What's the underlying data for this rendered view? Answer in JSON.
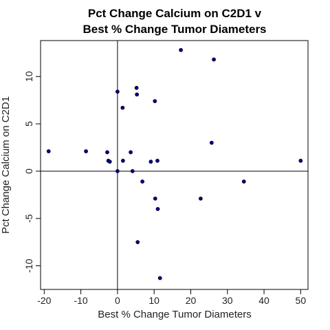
{
  "chart_data": {
    "type": "scatter",
    "title_lines": [
      "Pct Change Calcium on C2D1 v",
      "Best % Change Tumor Diameters"
    ],
    "xlabel": "Best % Change Tumor Diameters",
    "ylabel": "Pct Change Calcium on C2D1",
    "xlim": [
      -21,
      52
    ],
    "ylim": [
      -12.5,
      13.8
    ],
    "x_ticks": [
      -20,
      -10,
      0,
      10,
      20,
      30,
      40,
      50
    ],
    "y_ticks": [
      -10,
      -5,
      0,
      5,
      10
    ],
    "x_tick_labels": [
      "-20",
      "-10",
      "0",
      "10",
      "20",
      "30",
      "40",
      "50"
    ],
    "y_tick_labels": [
      "-10",
      "-5",
      "0",
      "5",
      "10"
    ],
    "reference_lines": {
      "x": 0,
      "y": 0
    },
    "point_color": "#00008B",
    "points": [
      {
        "x": -18.8,
        "y": 2.1
      },
      {
        "x": -8.6,
        "y": 2.1
      },
      {
        "x": -2.8,
        "y": 2.0
      },
      {
        "x": -2.5,
        "y": 1.1
      },
      {
        "x": -2.1,
        "y": 1.0
      },
      {
        "x": 0.0,
        "y": 0.0
      },
      {
        "x": 0.0,
        "y": 8.4
      },
      {
        "x": 1.4,
        "y": 6.7
      },
      {
        "x": 1.5,
        "y": 1.1
      },
      {
        "x": 3.6,
        "y": 2.0
      },
      {
        "x": 4.1,
        "y": 0.0
      },
      {
        "x": 5.2,
        "y": 8.8
      },
      {
        "x": 5.3,
        "y": 8.1
      },
      {
        "x": 5.5,
        "y": -7.5
      },
      {
        "x": 6.8,
        "y": -1.1
      },
      {
        "x": 9.1,
        "y": 1.0
      },
      {
        "x": 10.2,
        "y": 7.4
      },
      {
        "x": 10.3,
        "y": -2.9
      },
      {
        "x": 10.9,
        "y": 1.1
      },
      {
        "x": 11.0,
        "y": -4.0
      },
      {
        "x": 11.6,
        "y": -11.3
      },
      {
        "x": 17.3,
        "y": 12.8
      },
      {
        "x": 22.7,
        "y": -2.9
      },
      {
        "x": 25.7,
        "y": 3.0
      },
      {
        "x": 26.3,
        "y": 11.8
      },
      {
        "x": 34.5,
        "y": -1.1
      },
      {
        "x": 50.0,
        "y": 1.1
      }
    ]
  }
}
